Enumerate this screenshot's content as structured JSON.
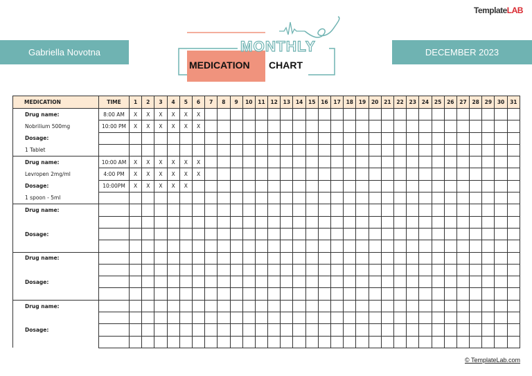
{
  "logo": {
    "text1": "Template",
    "text2": "LAB"
  },
  "patient_name": "Gabriella Novotna",
  "month": "DECEMBER 2023",
  "title": {
    "line1": "MONTHLY",
    "line2a": "MEDICATION",
    "line2b": "CHART"
  },
  "colors": {
    "teal": "#6fb3b2",
    "salmon": "#f0937d",
    "header_fill": "#fde9d3"
  },
  "table": {
    "headers": {
      "medication": "MEDICATION",
      "time": "TIME"
    },
    "days": [
      "1",
      "2",
      "3",
      "4",
      "5",
      "6",
      "7",
      "8",
      "9",
      "10",
      "11",
      "12",
      "13",
      "14",
      "15",
      "16",
      "17",
      "18",
      "19",
      "20",
      "21",
      "22",
      "23",
      "24",
      "25",
      "26",
      "27",
      "28",
      "29",
      "30",
      "31"
    ],
    "groups": [
      {
        "rows": [
          {
            "label": "Drug name:",
            "bold": true,
            "time": "8:00 AM",
            "marked_days": [
              1,
              2,
              3,
              4,
              5,
              6
            ]
          },
          {
            "label": "Nobrilium 500mg",
            "bold": false,
            "time": "10:00 PM",
            "marked_days": [
              1,
              2,
              3,
              4,
              5,
              6
            ]
          },
          {
            "label": "Dosage:",
            "bold": true,
            "time": "",
            "marked_days": []
          },
          {
            "label": "1 Tablet",
            "bold": false,
            "time": "",
            "marked_days": []
          }
        ]
      },
      {
        "rows": [
          {
            "label": "Drug name:",
            "bold": true,
            "time": "10:00 AM",
            "marked_days": [
              1,
              2,
              3,
              4,
              5,
              6
            ]
          },
          {
            "label": "Levropen 2mg/ml",
            "bold": false,
            "time": "4:00 PM",
            "marked_days": [
              1,
              2,
              3,
              4,
              5,
              6
            ]
          },
          {
            "label": "Dosage:",
            "bold": true,
            "time": "10:00PM",
            "marked_days": [
              1,
              2,
              3,
              4,
              5
            ]
          },
          {
            "label": "1 spoon - 5ml",
            "bold": false,
            "time": "",
            "marked_days": []
          }
        ]
      },
      {
        "rows": [
          {
            "label": "Drug name:",
            "bold": true,
            "time": "",
            "marked_days": []
          },
          {
            "label": "",
            "bold": false,
            "time": "",
            "marked_days": []
          },
          {
            "label": "Dosage:",
            "bold": true,
            "time": "",
            "marked_days": []
          },
          {
            "label": "",
            "bold": false,
            "time": "",
            "marked_days": []
          }
        ]
      },
      {
        "rows": [
          {
            "label": "Drug name:",
            "bold": true,
            "time": "",
            "marked_days": []
          },
          {
            "label": "",
            "bold": false,
            "time": "",
            "marked_days": []
          },
          {
            "label": "Dosage:",
            "bold": true,
            "time": "",
            "marked_days": []
          },
          {
            "label": "",
            "bold": false,
            "time": "",
            "marked_days": []
          }
        ]
      },
      {
        "rows": [
          {
            "label": "Drug name:",
            "bold": true,
            "time": "",
            "marked_days": []
          },
          {
            "label": "",
            "bold": false,
            "time": "",
            "marked_days": []
          },
          {
            "label": "Dosage:",
            "bold": true,
            "time": "",
            "marked_days": []
          },
          {
            "label": "",
            "bold": false,
            "time": "",
            "marked_days": []
          }
        ]
      }
    ],
    "mark": "X"
  },
  "footer": "© TemplateLab.com"
}
